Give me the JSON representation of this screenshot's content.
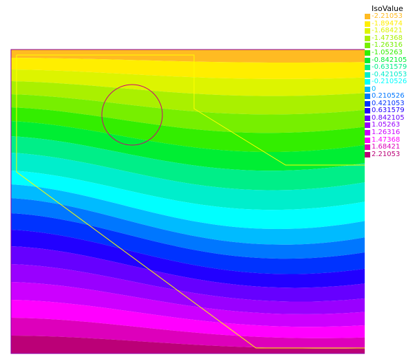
{
  "legend": {
    "title": "IsoValue",
    "entries": [
      {
        "label": "-2.21053",
        "color": "#ffbb22"
      },
      {
        "label": "-1.89474",
        "color": "#ffee00"
      },
      {
        "label": "-1.68421",
        "color": "#ddf400"
      },
      {
        "label": "-1.47368",
        "color": "#aaf000"
      },
      {
        "label": "-1.26316",
        "color": "#77ef00"
      },
      {
        "label": "-1.05263",
        "color": "#33ee00"
      },
      {
        "label": "-0.842105",
        "color": "#00ee33"
      },
      {
        "label": "-0.631579",
        "color": "#00ee88"
      },
      {
        "label": "-0.421053",
        "color": "#00eecc"
      },
      {
        "label": "-0.210526",
        "color": "#00ffff"
      },
      {
        "label": "0",
        "color": "#00bbff"
      },
      {
        "label": "0.210526",
        "color": "#0077ff"
      },
      {
        "label": "0.421053",
        "color": "#0033ff"
      },
      {
        "label": "0.631579",
        "color": "#2200ff"
      },
      {
        "label": "0.842105",
        "color": "#6600ff"
      },
      {
        "label": "1.05263",
        "color": "#9900ff"
      },
      {
        "label": "1.26316",
        "color": "#cc00ff"
      },
      {
        "label": "1.47368",
        "color": "#ff00ff"
      },
      {
        "label": "1.68421",
        "color": "#dd00bb"
      },
      {
        "label": "2.21053",
        "color": "#bb0077"
      }
    ]
  },
  "colors": {
    "frame": "#8800aa",
    "boundary": "#ffff00",
    "circle": "#cc0077"
  }
}
